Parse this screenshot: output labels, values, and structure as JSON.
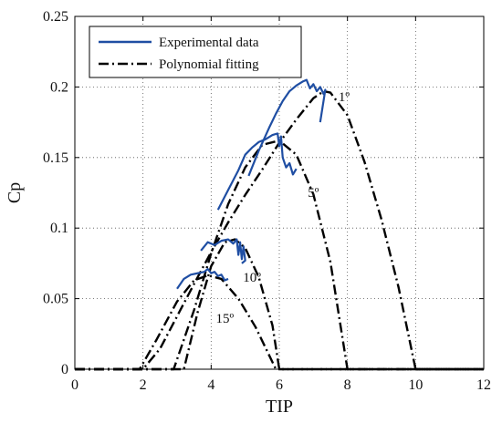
{
  "chart_data": {
    "type": "line",
    "xlabel": "TIP",
    "ylabel": "Cp",
    "xlim": [
      0,
      12
    ],
    "ylim": [
      0,
      0.25
    ],
    "xticks": [
      0,
      2,
      4,
      6,
      8,
      10,
      12
    ],
    "yticks": [
      0,
      0.05,
      0.1,
      0.15,
      0.2,
      0.25
    ],
    "xtick_labels": [
      "0",
      "2",
      "4",
      "6",
      "8",
      "10",
      "12"
    ],
    "ytick_labels": [
      "0",
      "0.05",
      "0.1",
      "0.15",
      "0.2",
      "0.25"
    ],
    "grid": true,
    "legend_position": "top-left",
    "legend": [
      {
        "label": "Experimental data",
        "style": "solid",
        "color": "#1f4ea3"
      },
      {
        "label": "Polynomial fitting",
        "style": "dashdot",
        "color": "#000000"
      }
    ],
    "annotations": [
      {
        "text": "1º",
        "x": 7.9,
        "y": 0.19
      },
      {
        "text": "5º",
        "x": 7.0,
        "y": 0.122
      },
      {
        "text": "10º",
        "x": 5.2,
        "y": 0.062
      },
      {
        "text": "15º",
        "x": 4.4,
        "y": 0.033
      }
    ],
    "series": [
      {
        "kind": "Polynomial fitting",
        "pitch": "1º",
        "style": "dashdot",
        "color": "#000000",
        "x": [
          0,
          2.0,
          2.5,
          3.0,
          3.5,
          4.0,
          4.5,
          5.0,
          5.5,
          6.0,
          6.5,
          7.0,
          7.3,
          7.5,
          8.0,
          8.5,
          9.0,
          9.5,
          10.0,
          12
        ],
        "y": [
          0,
          0,
          0.0145,
          0.0375,
          0.0605,
          0.083,
          0.104,
          0.1235,
          0.1415,
          0.1605,
          0.177,
          0.192,
          0.197,
          0.196,
          0.18,
          0.147,
          0.106,
          0.058,
          0,
          0
        ]
      },
      {
        "kind": "Polynomial fitting",
        "pitch": "5º",
        "style": "dashdot",
        "color": "#000000",
        "x": [
          0,
          2.9,
          3.5,
          4.0,
          4.5,
          5.0,
          5.5,
          6.0,
          6.5,
          7.0,
          7.5,
          8.0,
          12
        ],
        "y": [
          0,
          0,
          0.042,
          0.082,
          0.117,
          0.143,
          0.159,
          0.162,
          0.152,
          0.124,
          0.076,
          0,
          0
        ]
      },
      {
        "kind": "Polynomial fitting",
        "pitch": "10º",
        "style": "dashdot",
        "color": "#000000",
        "x": [
          0,
          3.2,
          3.6,
          4.0,
          4.4,
          4.7,
          5.0,
          5.4,
          5.8,
          6.0,
          12
        ],
        "y": [
          0,
          0,
          0.04,
          0.073,
          0.09,
          0.092,
          0.086,
          0.065,
          0.031,
          0,
          0
        ]
      },
      {
        "kind": "Polynomial fitting",
        "pitch": "15º",
        "style": "dashdot",
        "color": "#000000",
        "x": [
          0,
          1.9,
          2.4,
          3.0,
          3.5,
          3.9,
          4.3,
          4.8,
          5.3,
          5.9,
          12
        ],
        "y": [
          0,
          0,
          0.021,
          0.048,
          0.063,
          0.0665,
          0.064,
          0.05,
          0.03,
          0,
          0
        ]
      },
      {
        "kind": "Experimental data",
        "pitch": "1º",
        "style": "solid",
        "color": "#1f4ea3",
        "x": [
          5.1,
          5.4,
          5.7,
          5.9,
          6.1,
          6.3,
          6.5,
          6.7,
          6.8,
          6.9,
          7.0,
          7.1,
          7.2,
          7.3,
          7.35,
          7.2
        ],
        "y": [
          0.137,
          0.155,
          0.171,
          0.181,
          0.19,
          0.197,
          0.201,
          0.204,
          0.205,
          0.199,
          0.202,
          0.197,
          0.2,
          0.195,
          0.198,
          0.175
        ]
      },
      {
        "kind": "Experimental data",
        "pitch": "5º",
        "style": "solid",
        "color": "#1f4ea3",
        "x": [
          4.2,
          4.5,
          4.8,
          5.0,
          5.2,
          5.4,
          5.6,
          5.8,
          5.95,
          6.0,
          6.05,
          6.1,
          6.2,
          6.3,
          6.4,
          6.5
        ],
        "y": [
          0.113,
          0.127,
          0.141,
          0.152,
          0.157,
          0.161,
          0.163,
          0.166,
          0.167,
          0.158,
          0.165,
          0.15,
          0.143,
          0.146,
          0.138,
          0.142
        ]
      },
      {
        "kind": "Experimental data",
        "pitch": "10º",
        "style": "solid",
        "color": "#1f4ea3",
        "x": [
          3.7,
          3.9,
          4.1,
          4.3,
          4.5,
          4.65,
          4.75,
          4.8,
          4.85,
          4.9,
          4.95,
          5.0,
          4.9
        ],
        "y": [
          0.084,
          0.09,
          0.088,
          0.091,
          0.092,
          0.089,
          0.092,
          0.081,
          0.09,
          0.078,
          0.087,
          0.077,
          0.075
        ]
      },
      {
        "kind": "Experimental data",
        "pitch": "15º",
        "style": "solid",
        "color": "#1f4ea3",
        "x": [
          3.0,
          3.2,
          3.4,
          3.6,
          3.8,
          3.9,
          4.0,
          4.1,
          4.2,
          4.3,
          4.4,
          4.5
        ],
        "y": [
          0.057,
          0.064,
          0.067,
          0.068,
          0.069,
          0.071,
          0.068,
          0.069,
          0.066,
          0.067,
          0.063,
          0.064
        ]
      }
    ]
  }
}
